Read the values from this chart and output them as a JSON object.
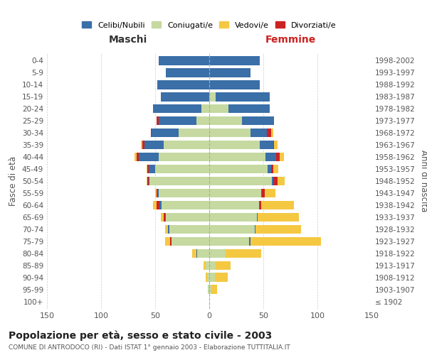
{
  "age_groups": [
    "100+",
    "95-99",
    "90-94",
    "85-89",
    "80-84",
    "75-79",
    "70-74",
    "65-69",
    "60-64",
    "55-59",
    "50-54",
    "45-49",
    "40-44",
    "35-39",
    "30-34",
    "25-29",
    "20-24",
    "15-19",
    "10-14",
    "5-9",
    "0-4"
  ],
  "birth_years": [
    "≤ 1902",
    "1903-1907",
    "1908-1912",
    "1913-1917",
    "1918-1922",
    "1923-1927",
    "1928-1932",
    "1933-1937",
    "1938-1942",
    "1943-1947",
    "1948-1952",
    "1953-1957",
    "1958-1962",
    "1963-1967",
    "1968-1972",
    "1973-1977",
    "1978-1982",
    "1983-1987",
    "1988-1992",
    "1993-1997",
    "1998-2002"
  ],
  "males": {
    "celibe": [
      0,
      0,
      0,
      0,
      1,
      0,
      1,
      1,
      2,
      1,
      1,
      6,
      18,
      18,
      25,
      35,
      45,
      45,
      48,
      40,
      47
    ],
    "coniugato": [
      0,
      1,
      2,
      3,
      11,
      35,
      37,
      40,
      44,
      47,
      55,
      50,
      47,
      42,
      28,
      12,
      7,
      0,
      0,
      0,
      0
    ],
    "vedovo": [
      0,
      0,
      1,
      2,
      4,
      5,
      3,
      3,
      3,
      1,
      1,
      1,
      2,
      1,
      0,
      0,
      0,
      0,
      0,
      0,
      0
    ],
    "divorziato": [
      0,
      0,
      0,
      0,
      0,
      1,
      0,
      1,
      3,
      1,
      1,
      1,
      2,
      2,
      1,
      2,
      0,
      0,
      0,
      0,
      0
    ]
  },
  "females": {
    "nubile": [
      0,
      0,
      0,
      0,
      0,
      1,
      1,
      1,
      1,
      1,
      1,
      3,
      10,
      12,
      15,
      30,
      38,
      50,
      47,
      38,
      47
    ],
    "coniugata": [
      0,
      2,
      5,
      6,
      15,
      37,
      42,
      44,
      46,
      48,
      58,
      54,
      52,
      47,
      38,
      30,
      18,
      6,
      0,
      0,
      0
    ],
    "vedova": [
      0,
      5,
      12,
      14,
      33,
      65,
      42,
      38,
      30,
      10,
      7,
      5,
      4,
      3,
      2,
      0,
      0,
      0,
      0,
      0,
      0
    ],
    "divorziata": [
      0,
      0,
      0,
      0,
      0,
      0,
      0,
      0,
      1,
      2,
      4,
      2,
      3,
      1,
      4,
      0,
      0,
      0,
      0,
      0,
      0
    ]
  },
  "colors": {
    "celibe": "#3a6fa8",
    "coniugato": "#c5d9a0",
    "vedovo": "#f5c842",
    "divorziato": "#cc2222"
  },
  "title": "Popolazione per età, sesso e stato civile - 2003",
  "subtitle": "COMUNE DI ANTRODOCO (RI) - Dati ISTAT 1° gennaio 2003 - Elaborazione TUTTITALIA.IT",
  "xlabel_left": "Maschi",
  "xlabel_right": "Femmine",
  "ylabel_left": "Fasce di età",
  "ylabel_right": "Anni di nascita",
  "xlim": 150,
  "background_color": "#ffffff",
  "grid_color": "#cccccc"
}
